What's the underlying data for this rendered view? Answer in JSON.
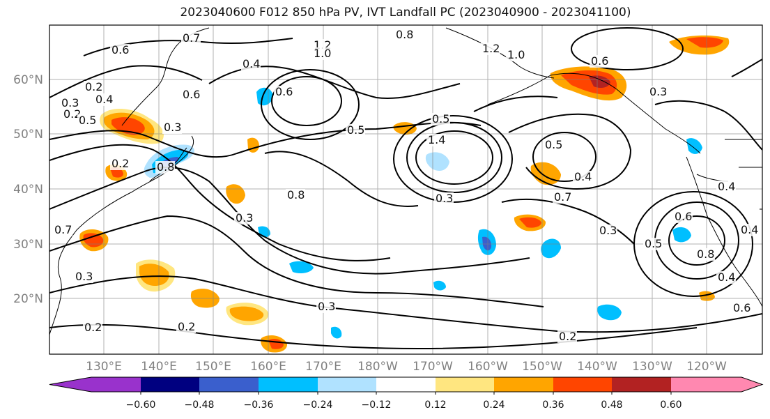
{
  "title": "2023040600 F012 850 hPa PV, IVT Landfall PC (2023040900 - 2023041100)",
  "map": {
    "lat_labels": [
      "60°N",
      "50°N",
      "40°N",
      "30°N",
      "20°N"
    ],
    "lon_labels": [
      "130°E",
      "140°E",
      "150°E",
      "160°E",
      "170°E",
      "180°W",
      "170°W",
      "160°W",
      "150°W",
      "140°W",
      "130°W",
      "120°W"
    ],
    "contour_labels": [
      "0.6",
      "0.7",
      "1.2",
      "1.0",
      "0.8",
      "0.4",
      "0.2",
      "0.6",
      "0.4",
      "0.3",
      "0.2",
      "0.5",
      "0.6",
      "0.3",
      "0.8",
      "0.5",
      "0.2",
      "0.7",
      "0.3",
      "0.2",
      "0.2",
      "0.8",
      "1.4",
      "0.5",
      "0.3",
      "0.4",
      "0.7",
      "0.3",
      "0.6",
      "0.8",
      "0.4",
      "0.6",
      "0.2",
      "1.2",
      "1.0",
      "0.6",
      "0.3",
      "0.5",
      "0.4",
      "0.3",
      "0.4",
      "0.5",
      "0.3"
    ]
  },
  "colorbar": {
    "ticks": [
      "−0.60",
      "−0.48",
      "−0.36",
      "−0.24",
      "−0.12",
      "0.12",
      "0.24",
      "0.36",
      "0.48",
      "0.60"
    ],
    "colors": [
      "#9932CC",
      "#000080",
      "#3A5FCD",
      "#00BFFF",
      "#B0E2FF",
      "#FFFFFF",
      "#FFE680",
      "#FFA500",
      "#FF4500",
      "#B22222",
      "#FF88B0"
    ]
  },
  "colors": {
    "contour": "#000000",
    "grid": "#808080",
    "coast": "#000000"
  }
}
